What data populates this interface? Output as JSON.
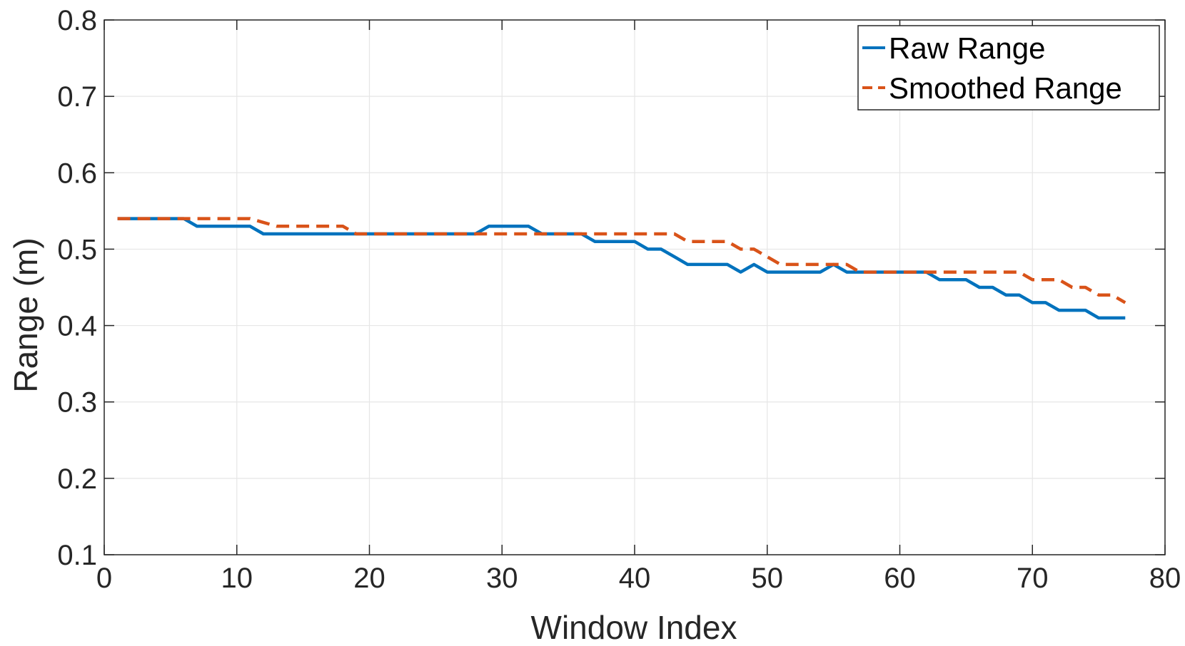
{
  "chart_data": {
    "type": "line",
    "title": "",
    "xlabel": "Window Index",
    "ylabel": "Range (m)",
    "xlim": [
      0,
      80
    ],
    "ylim": [
      0.1,
      0.8
    ],
    "xticks": [
      0,
      10,
      20,
      30,
      40,
      50,
      60,
      70,
      80
    ],
    "yticks": [
      0.1,
      0.2,
      0.3,
      0.4,
      0.5,
      0.6,
      0.7,
      0.8
    ],
    "xtick_labels": [
      "0",
      "10",
      "20",
      "30",
      "40",
      "50",
      "60",
      "70",
      "80"
    ],
    "ytick_labels": [
      "0.1",
      "0.2",
      "0.3",
      "0.4",
      "0.5",
      "0.6",
      "0.7",
      "0.8"
    ],
    "grid": true,
    "legend_position": "top-right",
    "x": [
      1,
      2,
      3,
      4,
      5,
      6,
      7,
      8,
      9,
      10,
      11,
      12,
      13,
      14,
      15,
      16,
      17,
      18,
      19,
      20,
      21,
      22,
      23,
      24,
      25,
      26,
      27,
      28,
      29,
      30,
      31,
      32,
      33,
      34,
      35,
      36,
      37,
      38,
      39,
      40,
      41,
      42,
      43,
      44,
      45,
      46,
      47,
      48,
      49,
      50,
      51,
      52,
      53,
      54,
      55,
      56,
      57,
      58,
      59,
      60,
      61,
      62,
      63,
      64,
      65,
      66,
      67,
      68,
      69,
      70,
      71,
      72,
      73,
      74,
      75,
      76,
      77
    ],
    "series": [
      {
        "name": "Raw Range",
        "color": "#0072BD",
        "style": "solid",
        "values": [
          0.54,
          0.54,
          0.54,
          0.54,
          0.54,
          0.54,
          0.53,
          0.53,
          0.53,
          0.53,
          0.53,
          0.52,
          0.52,
          0.52,
          0.52,
          0.52,
          0.52,
          0.52,
          0.52,
          0.52,
          0.52,
          0.52,
          0.52,
          0.52,
          0.52,
          0.52,
          0.52,
          0.52,
          0.53,
          0.53,
          0.53,
          0.53,
          0.52,
          0.52,
          0.52,
          0.52,
          0.51,
          0.51,
          0.51,
          0.51,
          0.5,
          0.5,
          0.49,
          0.48,
          0.48,
          0.48,
          0.48,
          0.47,
          0.48,
          0.47,
          0.47,
          0.47,
          0.47,
          0.47,
          0.48,
          0.47,
          0.47,
          0.47,
          0.47,
          0.47,
          0.47,
          0.47,
          0.46,
          0.46,
          0.46,
          0.45,
          0.45,
          0.44,
          0.44,
          0.43,
          0.43,
          0.42,
          0.42,
          0.42,
          0.41,
          0.41,
          0.41
        ]
      },
      {
        "name": "Smoothed Range",
        "color": "#D95319",
        "style": "dashed",
        "values": [
          0.54,
          0.54,
          0.54,
          0.54,
          0.54,
          0.54,
          0.54,
          0.54,
          0.54,
          0.54,
          0.54,
          0.535,
          0.53,
          0.53,
          0.53,
          0.53,
          0.53,
          0.53,
          0.52,
          0.52,
          0.52,
          0.52,
          0.52,
          0.52,
          0.52,
          0.52,
          0.52,
          0.52,
          0.52,
          0.52,
          0.52,
          0.52,
          0.52,
          0.52,
          0.52,
          0.52,
          0.52,
          0.52,
          0.52,
          0.52,
          0.52,
          0.52,
          0.52,
          0.51,
          0.51,
          0.51,
          0.51,
          0.5,
          0.5,
          0.49,
          0.48,
          0.48,
          0.48,
          0.48,
          0.48,
          0.48,
          0.47,
          0.47,
          0.47,
          0.47,
          0.47,
          0.47,
          0.47,
          0.47,
          0.47,
          0.47,
          0.47,
          0.47,
          0.47,
          0.46,
          0.46,
          0.46,
          0.45,
          0.45,
          0.44,
          0.44,
          0.43
        ]
      }
    ]
  }
}
